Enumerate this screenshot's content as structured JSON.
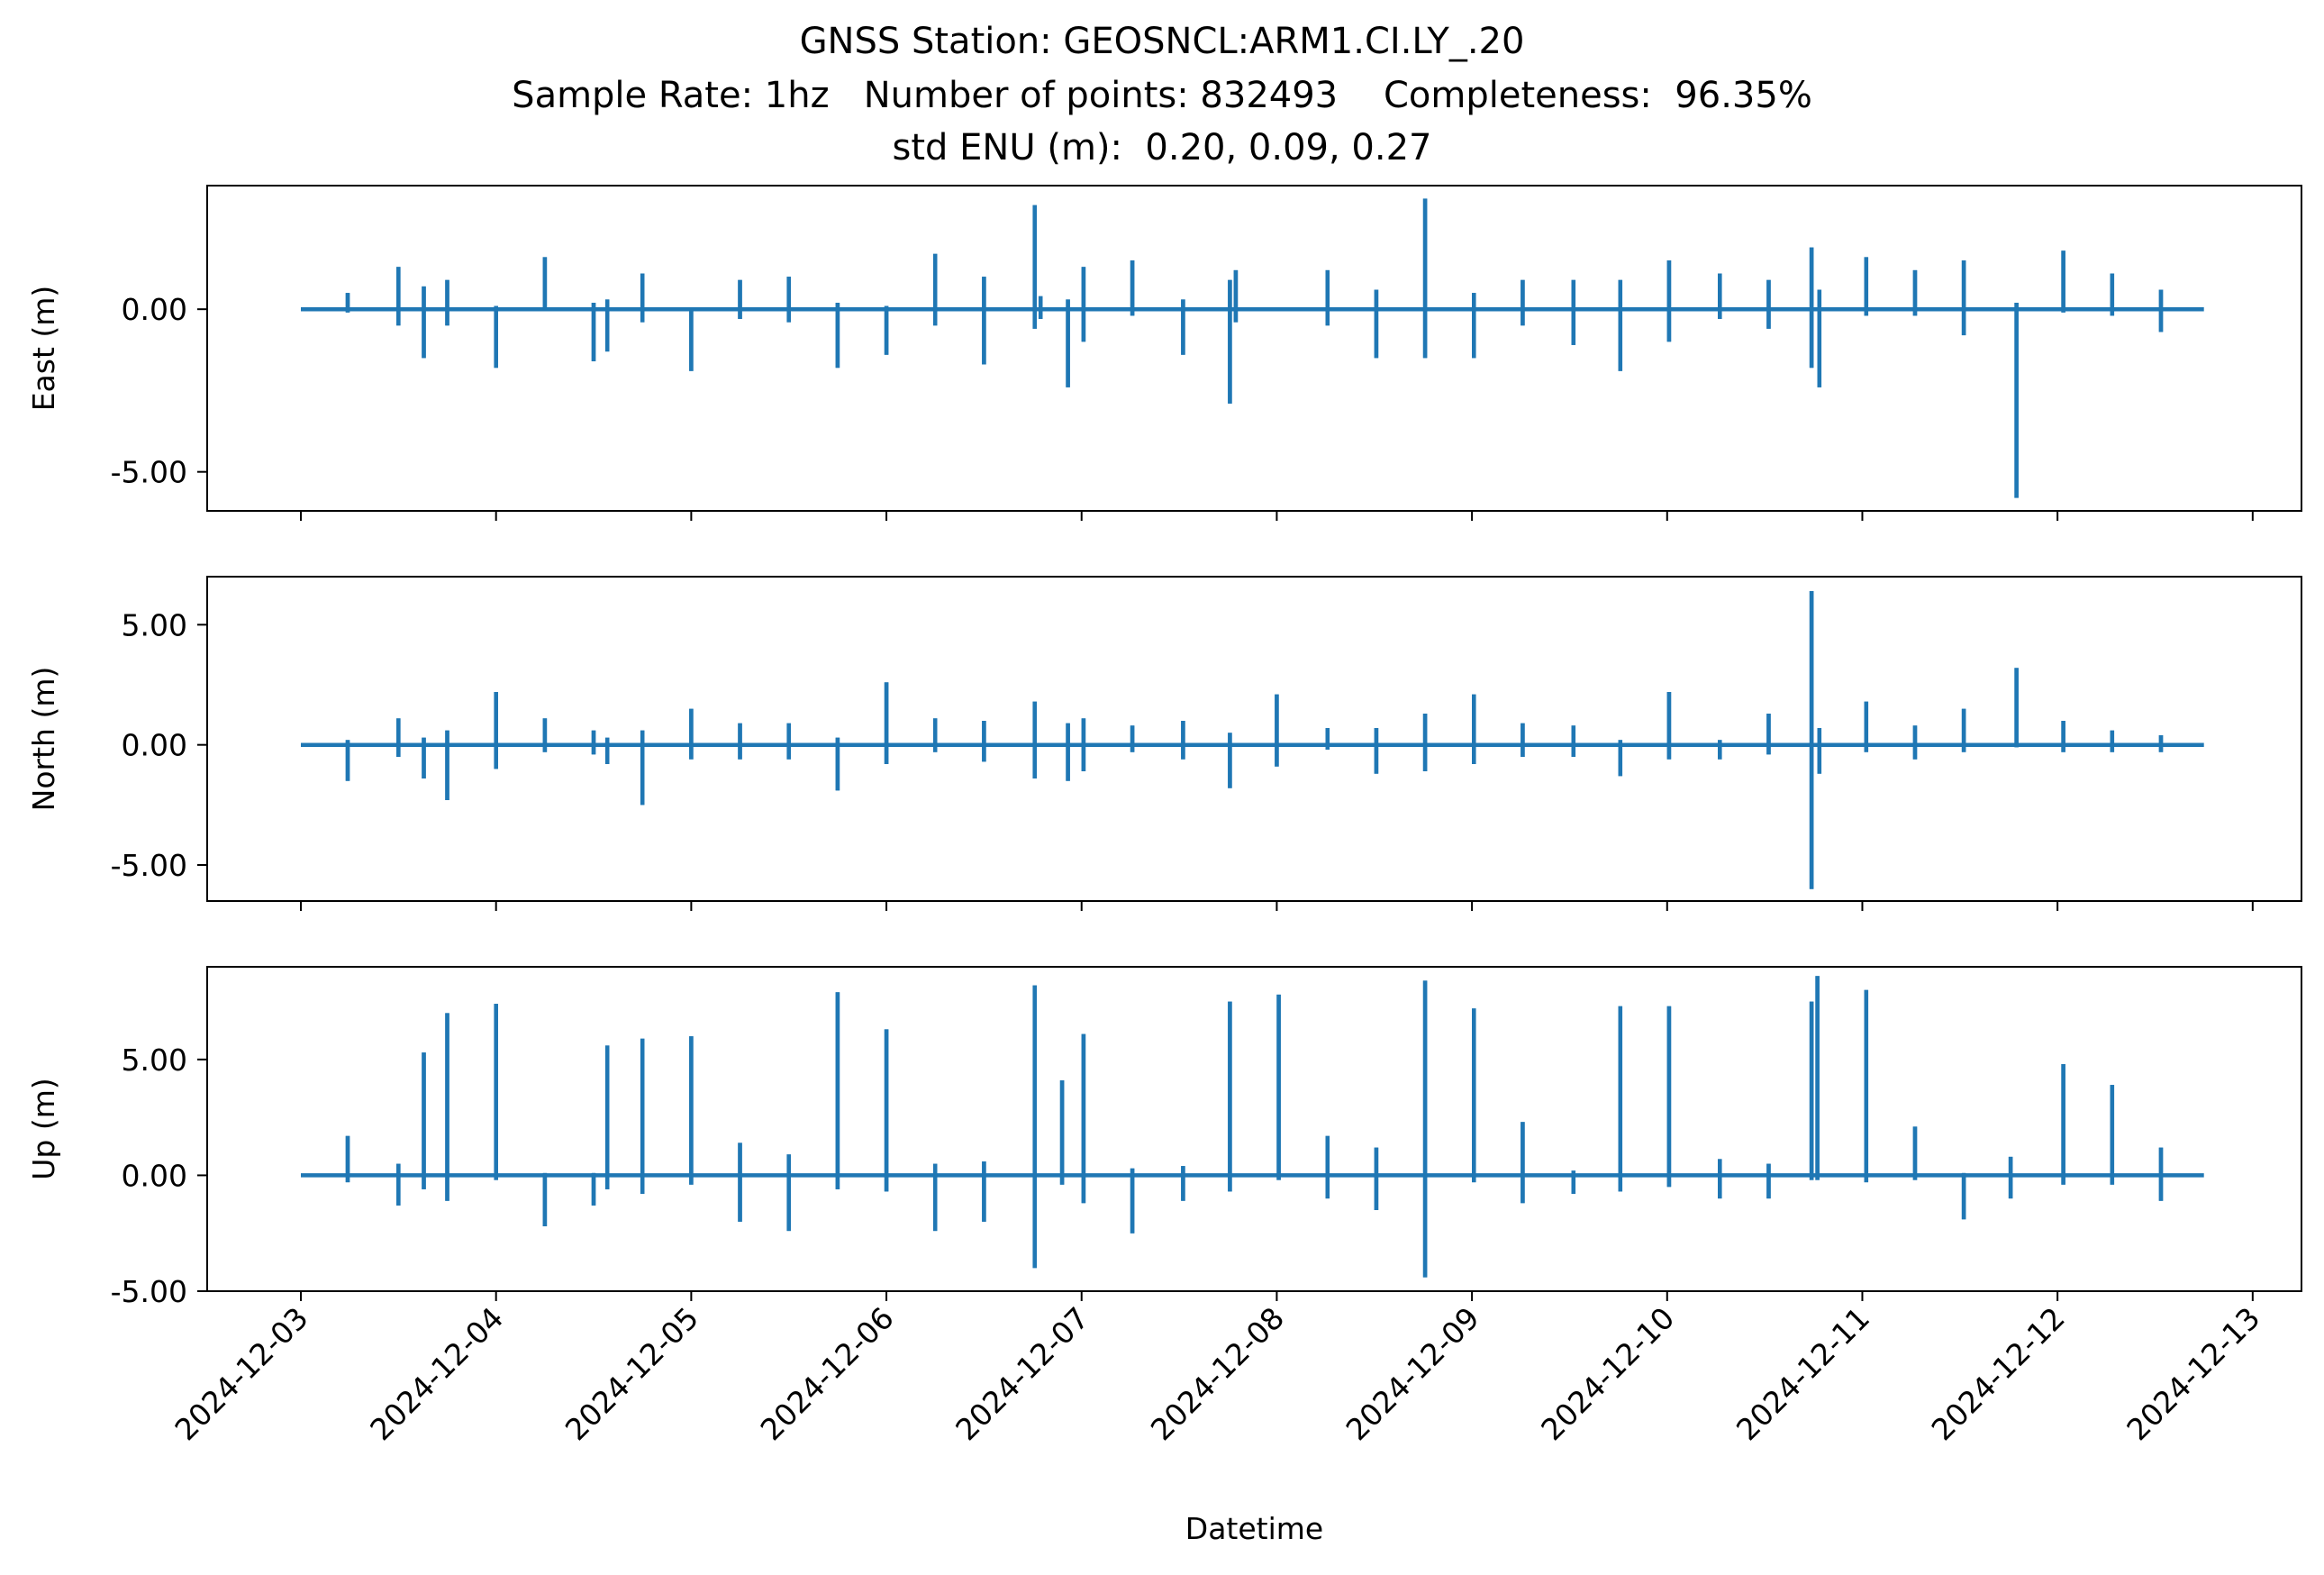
{
  "chart_data": {
    "type": "line",
    "title_lines": [
      "GNSS Station: GEOSNCL:ARM1.CI.LY_.20",
      "Sample Rate: 1hz   Number of points: 832493    Completeness:  96.35%",
      "std ENU (m):  0.20, 0.09, 0.27"
    ],
    "xlabel": "Datetime",
    "x_range_days": [
      -0.48,
      10.25
    ],
    "x_ticks": [
      {
        "v": 0,
        "label": "2024-12-03"
      },
      {
        "v": 1,
        "label": "2024-12-04"
      },
      {
        "v": 2,
        "label": "2024-12-05"
      },
      {
        "v": 3,
        "label": "2024-12-06"
      },
      {
        "v": 4,
        "label": "2024-12-07"
      },
      {
        "v": 5,
        "label": "2024-12-08"
      },
      {
        "v": 6,
        "label": "2024-12-09"
      },
      {
        "v": 7,
        "label": "2024-12-10"
      },
      {
        "v": 8,
        "label": "2024-12-11"
      },
      {
        "v": 9,
        "label": "2024-12-12"
      },
      {
        "v": 10,
        "label": "2024-12-13"
      }
    ],
    "x_start": 0.0,
    "x_end": 9.75,
    "line_color": "#1f77b4",
    "panels": [
      {
        "name": "East",
        "ylabel": "East (m)",
        "ylim": [
          -6.2,
          3.8
        ],
        "yticks": [
          {
            "v": 0,
            "label": "0.00"
          },
          {
            "v": -5,
            "label": "-5.00"
          }
        ],
        "spikes": [
          [
            0.24,
            0.5,
            -0.1
          ],
          [
            0.5,
            1.3,
            -0.5
          ],
          [
            0.63,
            0.7,
            -1.5
          ],
          [
            0.75,
            0.9,
            -0.5
          ],
          [
            1.0,
            0.1,
            -1.8
          ],
          [
            1.25,
            1.6,
            0.0
          ],
          [
            1.5,
            0.2,
            -1.6
          ],
          [
            1.57,
            0.3,
            -1.3
          ],
          [
            1.75,
            1.1,
            -0.4
          ],
          [
            2.0,
            0.0,
            -1.9
          ],
          [
            2.25,
            0.9,
            -0.3
          ],
          [
            2.5,
            1.0,
            -0.4
          ],
          [
            2.75,
            0.2,
            -1.8
          ],
          [
            3.0,
            0.1,
            -1.4
          ],
          [
            3.25,
            1.7,
            -0.5
          ],
          [
            3.5,
            1.0,
            -1.7
          ],
          [
            3.76,
            3.2,
            -0.6
          ],
          [
            3.79,
            0.4,
            -0.3
          ],
          [
            3.93,
            0.3,
            -2.4
          ],
          [
            4.01,
            1.3,
            -1.0
          ],
          [
            4.26,
            1.5,
            -0.2
          ],
          [
            4.52,
            0.3,
            -1.4
          ],
          [
            4.76,
            0.9,
            -2.9
          ],
          [
            4.79,
            1.2,
            -0.4
          ],
          [
            5.26,
            1.2,
            -0.5
          ],
          [
            5.51,
            0.6,
            -1.5
          ],
          [
            5.76,
            3.4,
            -1.5
          ],
          [
            6.01,
            0.5,
            -1.5
          ],
          [
            6.26,
            0.9,
            -0.5
          ],
          [
            6.52,
            0.9,
            -1.1
          ],
          [
            6.76,
            0.9,
            -1.9
          ],
          [
            7.01,
            1.5,
            -1.0
          ],
          [
            7.27,
            1.1,
            -0.3
          ],
          [
            7.52,
            0.9,
            -0.6
          ],
          [
            7.74,
            1.9,
            -1.8
          ],
          [
            7.78,
            0.6,
            -2.4
          ],
          [
            8.02,
            1.6,
            -0.2
          ],
          [
            8.27,
            1.2,
            -0.2
          ],
          [
            8.52,
            1.5,
            -0.8
          ],
          [
            8.79,
            0.2,
            -5.8
          ],
          [
            9.03,
            1.8,
            -0.1
          ],
          [
            9.28,
            1.1,
            -0.2
          ],
          [
            9.53,
            0.6,
            -0.7
          ]
        ]
      },
      {
        "name": "North",
        "ylabel": "North (m)",
        "ylim": [
          -6.5,
          7.0
        ],
        "yticks": [
          {
            "v": 5,
            "label": "5.00"
          },
          {
            "v": 0,
            "label": "0.00"
          },
          {
            "v": -5,
            "label": "-5.00"
          }
        ],
        "spikes": [
          [
            0.24,
            0.2,
            -1.5
          ],
          [
            0.5,
            1.1,
            -0.5
          ],
          [
            0.63,
            0.3,
            -1.4
          ],
          [
            0.75,
            0.6,
            -2.3
          ],
          [
            1.0,
            2.2,
            -1.0
          ],
          [
            1.25,
            1.1,
            -0.3
          ],
          [
            1.5,
            0.6,
            -0.4
          ],
          [
            1.57,
            0.3,
            -0.8
          ],
          [
            1.75,
            0.6,
            -2.5
          ],
          [
            2.0,
            1.5,
            -0.6
          ],
          [
            2.25,
            0.9,
            -0.6
          ],
          [
            2.5,
            0.9,
            -0.6
          ],
          [
            2.75,
            0.3,
            -1.9
          ],
          [
            3.0,
            2.6,
            -0.8
          ],
          [
            3.25,
            1.1,
            -0.3
          ],
          [
            3.5,
            1.0,
            -0.7
          ],
          [
            3.76,
            1.8,
            -1.4
          ],
          [
            3.93,
            0.9,
            -1.5
          ],
          [
            4.01,
            1.1,
            -1.1
          ],
          [
            4.26,
            0.8,
            -0.3
          ],
          [
            4.52,
            1.0,
            -0.6
          ],
          [
            4.76,
            0.5,
            -1.8
          ],
          [
            5.0,
            2.1,
            -0.9
          ],
          [
            5.26,
            0.7,
            -0.2
          ],
          [
            5.51,
            0.7,
            -1.2
          ],
          [
            5.76,
            1.3,
            -1.1
          ],
          [
            6.01,
            2.1,
            -0.8
          ],
          [
            6.26,
            0.9,
            -0.5
          ],
          [
            6.52,
            0.8,
            -0.5
          ],
          [
            6.76,
            0.2,
            -1.3
          ],
          [
            7.01,
            2.2,
            -0.6
          ],
          [
            7.27,
            0.2,
            -0.6
          ],
          [
            7.52,
            1.3,
            -0.4
          ],
          [
            7.74,
            6.4,
            -6.0
          ],
          [
            7.78,
            0.7,
            -1.2
          ],
          [
            8.02,
            1.8,
            -0.3
          ],
          [
            8.27,
            0.8,
            -0.6
          ],
          [
            8.52,
            1.5,
            -0.3
          ],
          [
            8.79,
            3.2,
            -0.1
          ],
          [
            9.03,
            1.0,
            -0.3
          ],
          [
            9.28,
            0.6,
            -0.3
          ],
          [
            9.53,
            0.4,
            -0.3
          ]
        ]
      },
      {
        "name": "Up",
        "ylabel": "Up (m)",
        "ylim": [
          -5.0,
          9.0
        ],
        "yticks": [
          {
            "v": 5,
            "label": "5.00"
          },
          {
            "v": 0,
            "label": "0.00"
          },
          {
            "v": -5,
            "label": "-5.00"
          }
        ],
        "spikes": [
          [
            0.24,
            1.7,
            -0.3
          ],
          [
            0.5,
            0.5,
            -1.3
          ],
          [
            0.63,
            5.3,
            -0.6
          ],
          [
            0.75,
            7.0,
            -1.1
          ],
          [
            1.0,
            7.4,
            -0.2
          ],
          [
            1.25,
            0.1,
            -2.2
          ],
          [
            1.5,
            0.1,
            -1.3
          ],
          [
            1.57,
            5.6,
            -0.6
          ],
          [
            1.75,
            5.9,
            -0.8
          ],
          [
            2.0,
            6.0,
            -0.4
          ],
          [
            2.25,
            1.4,
            -2.0
          ],
          [
            2.5,
            0.9,
            -2.4
          ],
          [
            2.75,
            7.9,
            -0.6
          ],
          [
            3.0,
            6.3,
            -0.7
          ],
          [
            3.25,
            0.5,
            -2.4
          ],
          [
            3.5,
            0.6,
            -2.0
          ],
          [
            3.76,
            8.2,
            -4.0
          ],
          [
            3.9,
            4.1,
            -0.4
          ],
          [
            4.01,
            6.1,
            -1.2
          ],
          [
            4.26,
            0.3,
            -2.5
          ],
          [
            4.52,
            0.4,
            -1.1
          ],
          [
            4.76,
            7.5,
            -0.7
          ],
          [
            5.01,
            7.8,
            -0.2
          ],
          [
            5.26,
            1.7,
            -1.0
          ],
          [
            5.51,
            1.2,
            -1.5
          ],
          [
            5.76,
            8.4,
            -4.4
          ],
          [
            6.01,
            7.2,
            -0.3
          ],
          [
            6.26,
            2.3,
            -1.2
          ],
          [
            6.52,
            0.2,
            -0.8
          ],
          [
            6.76,
            7.3,
            -0.7
          ],
          [
            7.01,
            7.3,
            -0.5
          ],
          [
            7.27,
            0.7,
            -1.0
          ],
          [
            7.52,
            0.5,
            -1.0
          ],
          [
            7.74,
            7.5,
            -0.2
          ],
          [
            7.77,
            8.6,
            -0.2
          ],
          [
            8.02,
            8.0,
            -0.3
          ],
          [
            8.27,
            2.1,
            -0.2
          ],
          [
            8.52,
            0.1,
            -1.9
          ],
          [
            8.76,
            0.8,
            -1.0
          ],
          [
            9.03,
            4.8,
            -0.4
          ],
          [
            9.28,
            3.9,
            -0.4
          ],
          [
            9.53,
            1.2,
            -1.1
          ]
        ]
      }
    ]
  }
}
